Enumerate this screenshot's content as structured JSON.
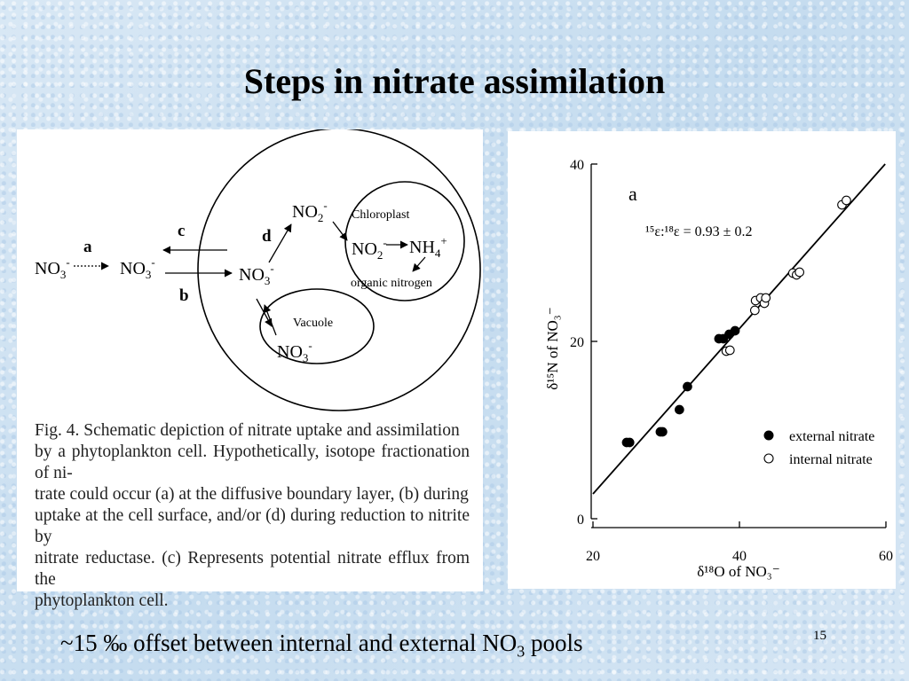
{
  "slide": {
    "title": "Steps in nitrate assimilation",
    "footer_text": "~15 ‰ offset between internal and external NO",
    "footer_sub": "3",
    "footer_tail": " pools",
    "slide_number": "15"
  },
  "schematic": {
    "no3": "NO",
    "sub3": "3",
    "sub2": "2",
    "minus": "-",
    "no2": "NO",
    "nh4": "NH",
    "sub4": "4",
    "plus": "+",
    "label_a": "a",
    "label_b": "b",
    "label_c": "c",
    "label_d": "d",
    "chloroplast": "Chloroplast",
    "organic_nitrogen": "organic nitrogen",
    "vacuole": "Vacuole",
    "caption_lines": [
      "Fig. 4.   Schematic depiction of nitrate uptake and assimilation",
      "by a phytoplankton cell. Hypothetically, isotope fractionation of ni-",
      "trate could occur (a) at the diffusive boundary layer, (b) during",
      "uptake at the cell surface, and/or (d) during reduction to nitrite by",
      "nitrate reductase. (c) Represents potential nitrate efflux from the",
      "phytoplankton cell."
    ]
  },
  "chart_data": {
    "type": "scatter",
    "panel_label": "a",
    "annotation": "¹⁵ε:¹⁸ε = 0.93 ± 0.2",
    "xlabel": "δ¹⁸O of NO₃⁻",
    "ylabel": "δ¹⁵N of NO₃⁻",
    "xlim": [
      20,
      60
    ],
    "ylim": [
      0,
      40
    ],
    "xticks": [
      20,
      40,
      60
    ],
    "yticks": [
      0,
      20,
      40
    ],
    "legend_position": "lower-right",
    "series": [
      {
        "name": "external nitrate",
        "marker": "filled",
        "points": [
          [
            24.6,
            8.6
          ],
          [
            25.0,
            8.6
          ],
          [
            29.2,
            9.8
          ],
          [
            29.5,
            9.8
          ],
          [
            31.8,
            12.3
          ],
          [
            32.9,
            14.9
          ],
          [
            37.2,
            20.3
          ],
          [
            37.8,
            20.3
          ],
          [
            38.6,
            20.8
          ],
          [
            39.4,
            21.2
          ]
        ]
      },
      {
        "name": "internal nitrate",
        "marker": "open",
        "points": [
          [
            38.2,
            18.9
          ],
          [
            38.7,
            19.0
          ],
          [
            42.1,
            23.5
          ],
          [
            42.2,
            24.6
          ],
          [
            42.9,
            24.9
          ],
          [
            43.4,
            24.3
          ],
          [
            43.6,
            24.9
          ],
          [
            47.3,
            27.7
          ],
          [
            47.8,
            27.5
          ],
          [
            48.2,
            27.8
          ],
          [
            54.0,
            35.4
          ],
          [
            54.6,
            35.9
          ]
        ]
      }
    ],
    "regression_line": {
      "x": [
        20.0,
        59.9
      ],
      "y": [
        2.8,
        40.0
      ]
    }
  }
}
